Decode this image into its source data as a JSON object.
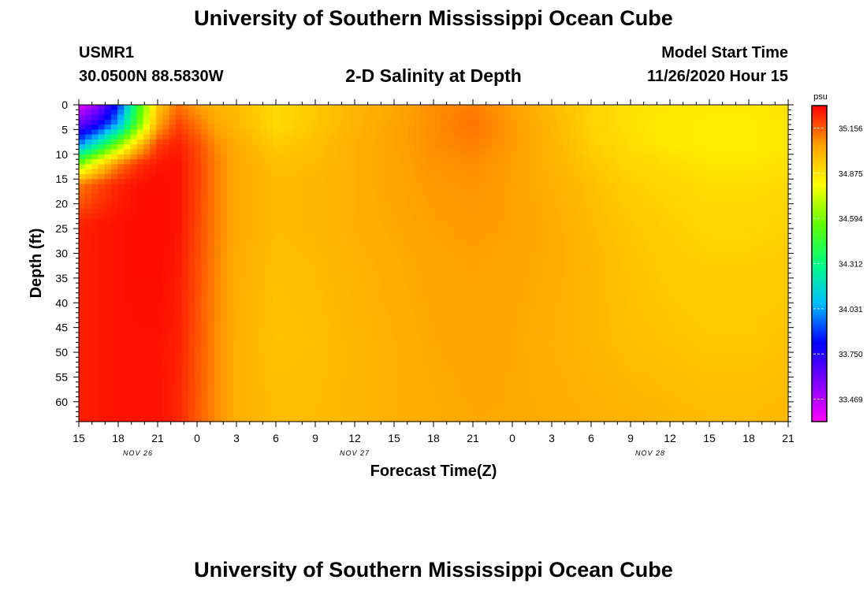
{
  "header": {
    "title": "University of Southern Mississippi Ocean Cube",
    "station_id": "USMR1",
    "coordinates": "30.0500N 88.5830W",
    "plot_title": "2-D Salinity at Depth",
    "start_label": "Model Start Time",
    "start_value": "11/26/2020 Hour 15"
  },
  "footer": {
    "title": "University of Southern Mississippi Ocean Cube"
  },
  "chart_data": {
    "type": "heatmap",
    "title": "2-D Salinity at Depth",
    "xlabel": "Forecast Time(Z)",
    "ylabel": "Depth (ft)",
    "x_range_hours": [
      0,
      54
    ],
    "y_range_ft": [
      0,
      64
    ],
    "x_tick_labels": [
      "15",
      "18",
      "21",
      "0",
      "3",
      "6",
      "9",
      "12",
      "15",
      "18",
      "21",
      "0",
      "3",
      "6",
      "9",
      "12",
      "15",
      "18",
      "21"
    ],
    "y_tick_labels": [
      "0",
      "5",
      "10",
      "15",
      "20",
      "25",
      "30",
      "35",
      "40",
      "45",
      "50",
      "55",
      "60"
    ],
    "date_labels": [
      {
        "text": "NOV 26",
        "hour": 4.5
      },
      {
        "text": "NOV 27",
        "hour": 21
      },
      {
        "text": "NOV 28",
        "hour": 43.5
      }
    ],
    "colorbar": {
      "unit": "psu",
      "min": 33.329,
      "max": 35.296,
      "tick_labels": [
        "35.156",
        "34.875",
        "34.594",
        "34.312",
        "34.031",
        "33.750",
        "33.469"
      ],
      "tick_values": [
        35.156,
        34.875,
        34.594,
        34.312,
        34.031,
        33.75,
        33.469
      ],
      "colors": [
        "#ff00ff",
        "#8000ff",
        "#0000ff",
        "#00c0ff",
        "#00ff80",
        "#60ff00",
        "#ffff00",
        "#ffa000",
        "#ff0000"
      ]
    },
    "salinity_field": {
      "description": "approximate salinity (psu) on a time x depth grid",
      "hours": [
        0,
        1.5,
        3,
        4.5,
        6,
        7.5,
        9,
        10.5,
        12,
        15,
        18,
        21,
        24,
        27,
        30,
        33,
        36,
        39,
        42,
        45,
        48,
        51,
        54
      ],
      "depths_ft": [
        0,
        4,
        8,
        12,
        16,
        24,
        32,
        48,
        64
      ],
      "values": [
        [
          33.38,
          33.55,
          33.85,
          34.45,
          34.95,
          35.12,
          35.05,
          35.0,
          34.98,
          34.9,
          34.95,
          35.0,
          35.03,
          35.08,
          35.1,
          35.05,
          34.98,
          34.92,
          34.88,
          34.87,
          34.86,
          34.86,
          34.88
        ],
        [
          33.62,
          33.78,
          34.05,
          34.55,
          35.02,
          35.2,
          35.12,
          35.03,
          34.99,
          34.9,
          34.95,
          35.0,
          35.04,
          35.08,
          35.12,
          35.06,
          34.99,
          34.92,
          34.88,
          34.86,
          34.85,
          34.85,
          34.87
        ],
        [
          33.98,
          34.25,
          34.6,
          34.95,
          35.2,
          35.25,
          35.18,
          35.08,
          35.02,
          34.94,
          34.97,
          35.01,
          35.04,
          35.08,
          35.1,
          35.06,
          35.0,
          34.93,
          34.89,
          34.86,
          34.85,
          34.85,
          34.87
        ],
        [
          34.6,
          34.88,
          35.1,
          35.22,
          35.26,
          35.27,
          35.2,
          35.1,
          35.03,
          34.97,
          34.98,
          35.01,
          35.04,
          35.07,
          35.08,
          35.05,
          35.0,
          34.95,
          34.91,
          34.89,
          34.87,
          34.87,
          34.88
        ],
        [
          35.1,
          35.18,
          35.24,
          35.27,
          35.28,
          35.27,
          35.2,
          35.1,
          35.03,
          34.98,
          34.99,
          35.01,
          35.04,
          35.06,
          35.07,
          35.05,
          35.01,
          34.97,
          34.93,
          34.91,
          34.89,
          34.89,
          34.9
        ],
        [
          35.24,
          35.26,
          35.27,
          35.28,
          35.28,
          35.27,
          35.19,
          35.1,
          35.03,
          34.98,
          34.99,
          35.01,
          35.03,
          35.05,
          35.06,
          35.05,
          35.02,
          34.98,
          34.95,
          34.93,
          34.91,
          34.91,
          34.92
        ],
        [
          35.25,
          35.26,
          35.27,
          35.28,
          35.28,
          35.26,
          35.18,
          35.09,
          35.02,
          34.97,
          34.98,
          35.0,
          35.02,
          35.04,
          35.05,
          35.04,
          35.02,
          34.99,
          34.96,
          34.94,
          34.93,
          34.93,
          34.94
        ],
        [
          35.25,
          35.26,
          35.27,
          35.27,
          35.27,
          35.25,
          35.17,
          35.08,
          35.01,
          34.96,
          34.97,
          34.99,
          35.01,
          35.03,
          35.04,
          35.03,
          35.01,
          34.99,
          34.97,
          34.96,
          34.95,
          34.95,
          34.96
        ],
        [
          35.25,
          35.26,
          35.27,
          35.27,
          35.27,
          35.24,
          35.16,
          35.08,
          35.01,
          34.98,
          34.98,
          34.99,
          35.01,
          35.02,
          35.03,
          35.03,
          35.02,
          35.01,
          35.0,
          34.99,
          34.98,
          34.98,
          34.99
        ]
      ]
    }
  }
}
